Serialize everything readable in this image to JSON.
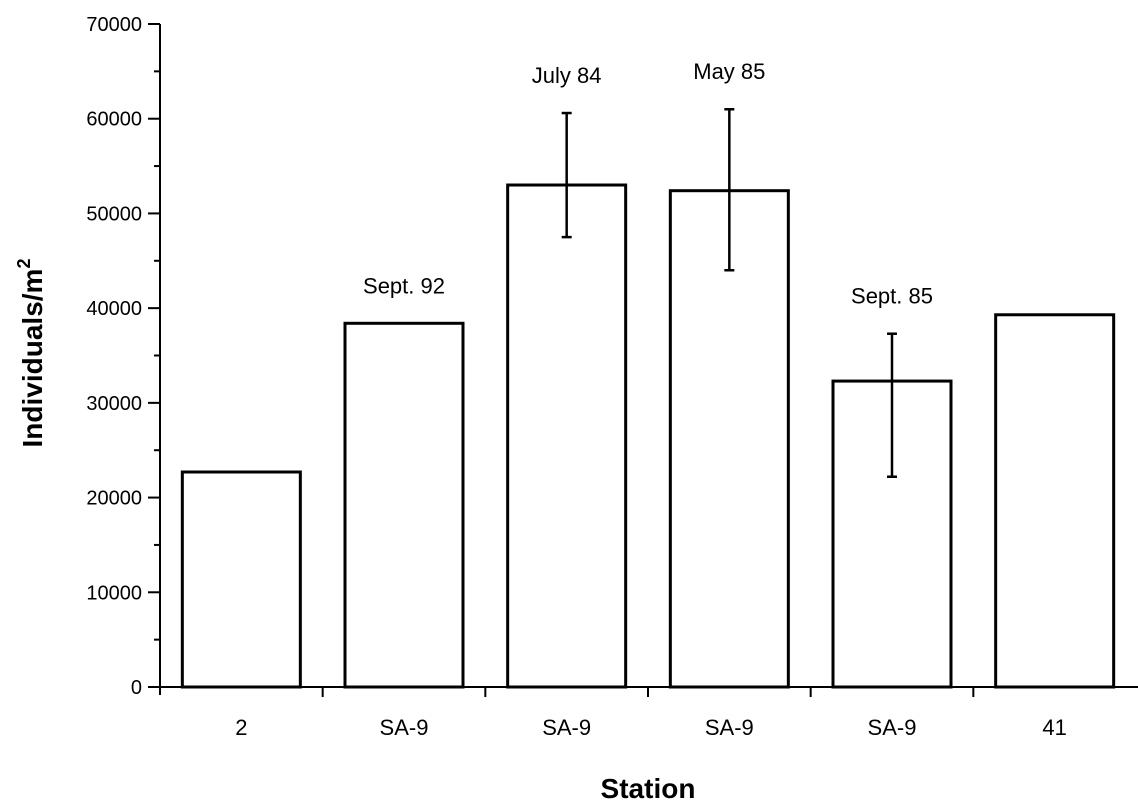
{
  "chart_data": {
    "type": "bar",
    "title": "",
    "xlabel": "Station",
    "ylabel_main": "Individuals/m",
    "ylabel_sup": "2",
    "categories": [
      "2",
      "SA-9",
      "SA-9",
      "SA-9",
      "SA-9",
      "41"
    ],
    "values": [
      22700,
      38400,
      53000,
      52400,
      32300,
      39300
    ],
    "error_bars": [
      null,
      null,
      {
        "low": 47500,
        "high": 60600
      },
      {
        "low": 44000,
        "high": 61000
      },
      {
        "low": 22200,
        "high": 37300
      },
      null
    ],
    "annotations": [
      "",
      "Sept. 92",
      "July 84",
      "May 85",
      "Sept. 85",
      ""
    ],
    "ylim": [
      0,
      70000
    ],
    "yticks": [
      "0",
      "10000",
      "20000",
      "30000",
      "40000",
      "50000",
      "60000",
      "70000"
    ],
    "grid": false,
    "legend": "none"
  }
}
